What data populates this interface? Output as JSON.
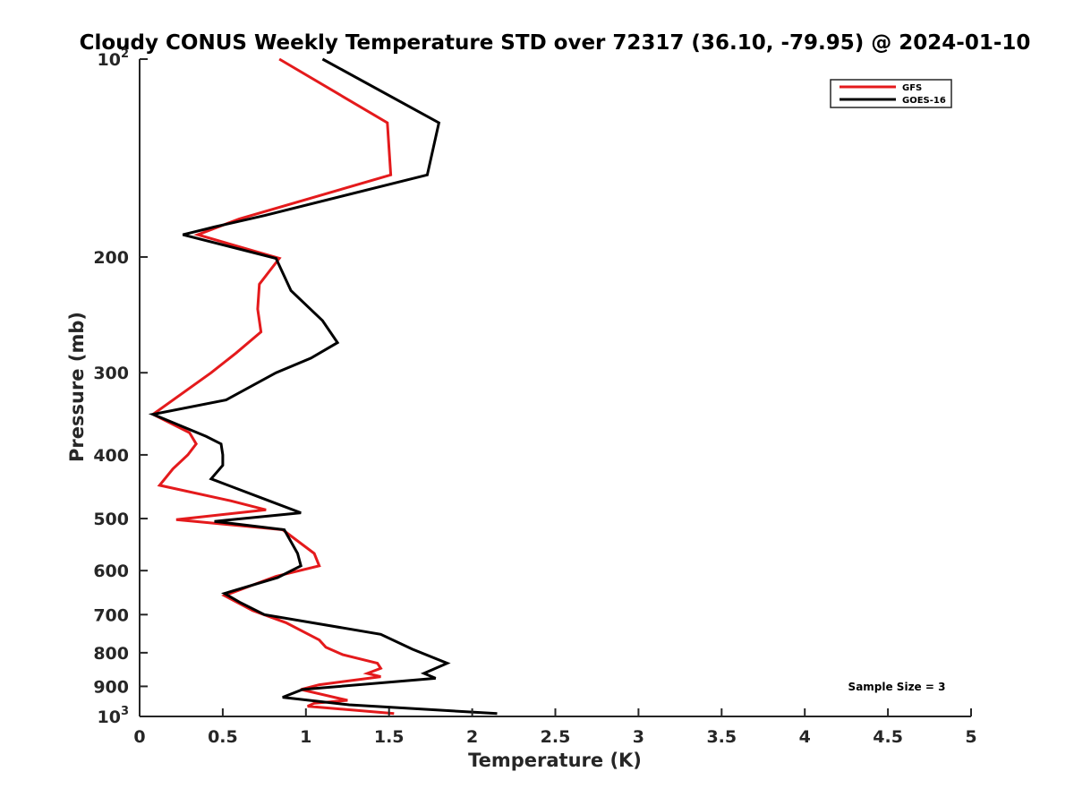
{
  "chart_data": {
    "type": "line",
    "title": "Cloudy CONUS Weekly Temperature STD over 72317 (36.10, -79.95) @ 2024-01-10",
    "xlabel": "Temperature (K)",
    "ylabel": "Pressure (mb)",
    "xlim": [
      0,
      5
    ],
    "ylim": [
      1000,
      100
    ],
    "y_scale": "log",
    "y_reversed": true,
    "x_ticks": [
      "0",
      "0.5",
      "1",
      "1.5",
      "2",
      "2.5",
      "3",
      "3.5",
      "4",
      "4.5",
      "5"
    ],
    "y_ticks": [
      {
        "value": 100,
        "base": "10",
        "exp": "2"
      },
      {
        "value": 200,
        "label": "200"
      },
      {
        "value": 300,
        "label": "300"
      },
      {
        "value": 400,
        "label": "400"
      },
      {
        "value": 500,
        "label": "500"
      },
      {
        "value": 600,
        "label": "600"
      },
      {
        "value": 700,
        "label": "700"
      },
      {
        "value": 800,
        "label": "800"
      },
      {
        "value": 900,
        "label": "900"
      },
      {
        "value": 1000,
        "base": "10",
        "exp": "3"
      }
    ],
    "grid": false,
    "legend_position": "top-right",
    "annotation": "Sample Size = 3",
    "series": [
      {
        "name": "GFS",
        "color": "#e41a1c",
        "points": [
          [
            0.84,
            100
          ],
          [
            1.49,
            125
          ],
          [
            1.51,
            150
          ],
          [
            0.6,
            175
          ],
          [
            0.35,
            185
          ],
          [
            0.84,
            201
          ],
          [
            0.72,
            220
          ],
          [
            0.71,
            240
          ],
          [
            0.73,
            260
          ],
          [
            0.58,
            280
          ],
          [
            0.43,
            300
          ],
          [
            0.08,
            347
          ],
          [
            0.3,
            370
          ],
          [
            0.34,
            385
          ],
          [
            0.29,
            400
          ],
          [
            0.2,
            420
          ],
          [
            0.12,
            445
          ],
          [
            0.55,
            470
          ],
          [
            0.76,
            485
          ],
          [
            0.22,
            502
          ],
          [
            0.86,
            520
          ],
          [
            1.05,
            565
          ],
          [
            1.08,
            590
          ],
          [
            0.82,
            612
          ],
          [
            0.51,
            655
          ],
          [
            0.68,
            690
          ],
          [
            0.88,
            720
          ],
          [
            1.08,
            765
          ],
          [
            1.12,
            785
          ],
          [
            1.22,
            805
          ],
          [
            1.43,
            830
          ],
          [
            1.45,
            845
          ],
          [
            1.37,
            860
          ],
          [
            1.45,
            870
          ],
          [
            1.08,
            895
          ],
          [
            0.97,
            910
          ],
          [
            1.25,
            945
          ],
          [
            1.05,
            955
          ],
          [
            1.01,
            965
          ],
          [
            1.53,
            990
          ]
        ]
      },
      {
        "name": "GOES-16",
        "color": "#000000",
        "points": [
          [
            1.1,
            100
          ],
          [
            1.8,
            125
          ],
          [
            1.73,
            150
          ],
          [
            0.75,
            173
          ],
          [
            0.45,
            180
          ],
          [
            0.26,
            185
          ],
          [
            0.82,
            201
          ],
          [
            0.91,
            225
          ],
          [
            1.1,
            250
          ],
          [
            1.19,
            270
          ],
          [
            1.03,
            285
          ],
          [
            0.82,
            300
          ],
          [
            0.52,
            330
          ],
          [
            0.08,
            347
          ],
          [
            0.4,
            375
          ],
          [
            0.49,
            385
          ],
          [
            0.5,
            400
          ],
          [
            0.5,
            415
          ],
          [
            0.43,
            435
          ],
          [
            0.78,
            470
          ],
          [
            0.97,
            490
          ],
          [
            0.45,
            505
          ],
          [
            0.87,
            520
          ],
          [
            0.95,
            565
          ],
          [
            0.97,
            590
          ],
          [
            0.83,
            615
          ],
          [
            0.51,
            650
          ],
          [
            0.6,
            670
          ],
          [
            0.75,
            700
          ],
          [
            1.45,
            750
          ],
          [
            1.64,
            790
          ],
          [
            1.85,
            830
          ],
          [
            1.71,
            860
          ],
          [
            1.78,
            875
          ],
          [
            0.98,
            910
          ],
          [
            0.86,
            935
          ],
          [
            1.26,
            960
          ],
          [
            2.15,
            990
          ]
        ]
      }
    ]
  }
}
